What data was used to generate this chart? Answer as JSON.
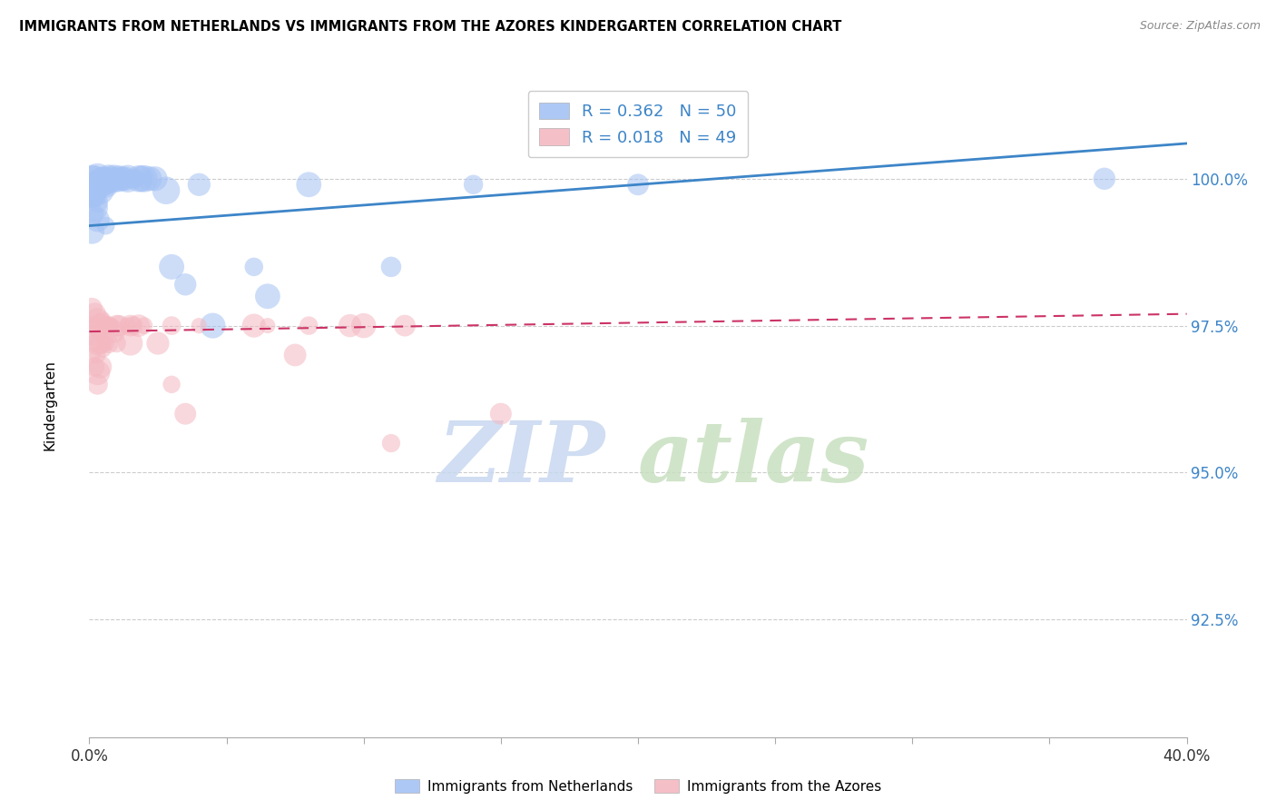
{
  "title": "IMMIGRANTS FROM NETHERLANDS VS IMMIGRANTS FROM THE AZORES KINDERGARTEN CORRELATION CHART",
  "source": "Source: ZipAtlas.com",
  "ylabel": "Kindergarten",
  "xlim": [
    0.0,
    0.4
  ],
  "ylim": [
    0.905,
    1.018
  ],
  "yticks": [
    0.925,
    0.95,
    0.975,
    1.0
  ],
  "ytick_labels": [
    "92.5%",
    "95.0%",
    "97.5%",
    "100.0%"
  ],
  "xticks": [
    0.0,
    0.05,
    0.1,
    0.15,
    0.2,
    0.25,
    0.3,
    0.35,
    0.4
  ],
  "xtick_labels": [
    "0.0%",
    "",
    "",
    "",
    "",
    "",
    "",
    "",
    "40.0%"
  ],
  "blue_R": 0.362,
  "blue_N": 50,
  "pink_R": 0.018,
  "pink_N": 49,
  "blue_color": "#a4c2f4",
  "pink_color": "#f4b8c1",
  "blue_line_color": "#3d85c8",
  "pink_line_color": "#cc3366",
  "watermark_zip": "ZIP",
  "watermark_atlas": "atlas",
  "legend_label_blue": "Immigrants from Netherlands",
  "legend_label_pink": "Immigrants from the Azores",
  "blue_scatter": [
    [
      0.001,
      1.0
    ],
    [
      0.002,
      1.0
    ],
    [
      0.003,
      1.0
    ],
    [
      0.004,
      1.0
    ],
    [
      0.005,
      1.0
    ],
    [
      0.006,
      1.0
    ],
    [
      0.007,
      1.0
    ],
    [
      0.008,
      1.0
    ],
    [
      0.009,
      1.0
    ],
    [
      0.01,
      1.0
    ],
    [
      0.011,
      1.0
    ],
    [
      0.012,
      1.0
    ],
    [
      0.013,
      1.0
    ],
    [
      0.014,
      1.0
    ],
    [
      0.015,
      1.0
    ],
    [
      0.016,
      1.0
    ],
    [
      0.017,
      1.0
    ],
    [
      0.018,
      1.0
    ],
    [
      0.019,
      1.0
    ],
    [
      0.02,
      1.0
    ],
    [
      0.003,
      0.999
    ],
    [
      0.004,
      0.999
    ],
    [
      0.005,
      0.999
    ],
    [
      0.006,
      0.999
    ],
    [
      0.007,
      0.999
    ],
    [
      0.002,
      0.998
    ],
    [
      0.003,
      0.998
    ],
    [
      0.004,
      0.998
    ],
    [
      0.001,
      0.997
    ],
    [
      0.002,
      0.997
    ],
    [
      0.003,
      0.996
    ],
    [
      0.002,
      0.995
    ],
    [
      0.001,
      0.994
    ],
    [
      0.003,
      0.993
    ],
    [
      0.006,
      0.992
    ],
    [
      0.001,
      0.991
    ],
    [
      0.022,
      1.0
    ],
    [
      0.024,
      1.0
    ],
    [
      0.028,
      0.998
    ],
    [
      0.03,
      0.985
    ],
    [
      0.035,
      0.982
    ],
    [
      0.04,
      0.999
    ],
    [
      0.045,
      0.975
    ],
    [
      0.06,
      0.985
    ],
    [
      0.065,
      0.98
    ],
    [
      0.08,
      0.999
    ],
    [
      0.11,
      0.985
    ],
    [
      0.14,
      0.999
    ],
    [
      0.2,
      0.999
    ],
    [
      0.37,
      1.0
    ]
  ],
  "pink_scatter": [
    [
      0.001,
      0.978
    ],
    [
      0.001,
      0.975
    ],
    [
      0.001,
      0.973
    ],
    [
      0.001,
      0.97
    ],
    [
      0.002,
      0.977
    ],
    [
      0.002,
      0.975
    ],
    [
      0.002,
      0.972
    ],
    [
      0.002,
      0.968
    ],
    [
      0.003,
      0.976
    ],
    [
      0.003,
      0.974
    ],
    [
      0.003,
      0.972
    ],
    [
      0.003,
      0.97
    ],
    [
      0.003,
      0.967
    ],
    [
      0.003,
      0.965
    ],
    [
      0.004,
      0.975
    ],
    [
      0.004,
      0.972
    ],
    [
      0.004,
      0.968
    ],
    [
      0.005,
      0.976
    ],
    [
      0.005,
      0.974
    ],
    [
      0.005,
      0.971
    ],
    [
      0.006,
      0.975
    ],
    [
      0.006,
      0.972
    ],
    [
      0.007,
      0.975
    ],
    [
      0.007,
      0.972
    ],
    [
      0.008,
      0.975
    ],
    [
      0.009,
      0.974
    ],
    [
      0.01,
      0.975
    ],
    [
      0.01,
      0.972
    ],
    [
      0.011,
      0.975
    ],
    [
      0.014,
      0.975
    ],
    [
      0.015,
      0.975
    ],
    [
      0.015,
      0.972
    ],
    [
      0.016,
      0.975
    ],
    [
      0.018,
      0.975
    ],
    [
      0.02,
      0.975
    ],
    [
      0.025,
      0.972
    ],
    [
      0.03,
      0.975
    ],
    [
      0.03,
      0.965
    ],
    [
      0.035,
      0.96
    ],
    [
      0.04,
      0.975
    ],
    [
      0.06,
      0.975
    ],
    [
      0.065,
      0.975
    ],
    [
      0.075,
      0.97
    ],
    [
      0.08,
      0.975
    ],
    [
      0.095,
      0.975
    ],
    [
      0.1,
      0.975
    ],
    [
      0.11,
      0.955
    ],
    [
      0.115,
      0.975
    ],
    [
      0.15,
      0.96
    ]
  ]
}
